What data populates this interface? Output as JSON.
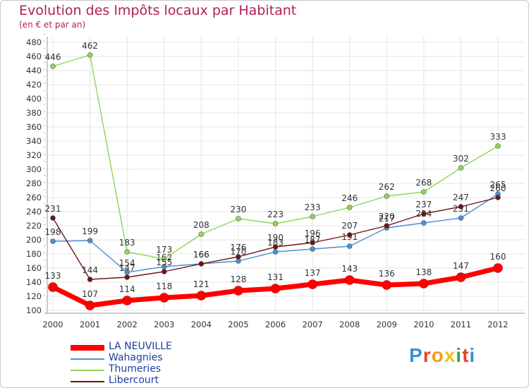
{
  "title": "Evolution des Impôts locaux par Habitant",
  "subtitle": "(en € et par an)",
  "logo": "Proxiti",
  "chart_data": {
    "type": "line",
    "title": "Evolution des Impôts locaux par Habitant",
    "ylabel": "(en € et par an)",
    "xlabel": "",
    "ylim": [
      100,
      480
    ],
    "ytick_step": 20,
    "x": [
      "2000",
      "2001",
      "2002",
      "2003",
      "2004",
      "2005",
      "2006",
      "2007",
      "2008",
      "2009",
      "2010",
      "2011",
      "2012"
    ],
    "series": [
      {
        "name": "LA NEUVILLE",
        "color": "#ff0000",
        "values": [
          133,
          107,
          114,
          118,
          121,
          128,
          131,
          137,
          143,
          136,
          138,
          147,
          160
        ],
        "labels": [
          "133",
          "107",
          "114",
          "118",
          "121",
          "128",
          "131",
          "137",
          "143",
          "136",
          "138",
          "147",
          "160"
        ]
      },
      {
        "name": "Wahagnies",
        "color": "#4a8fcf",
        "values": [
          198,
          199,
          154,
          162,
          166,
          170,
          183,
          187,
          191,
          217,
          224,
          231,
          265
        ],
        "labels": [
          "198",
          "199",
          "154",
          "162",
          "166",
          "170",
          "183",
          "187",
          "191",
          "217",
          "224",
          "231",
          "265"
        ]
      },
      {
        "name": "Thumeries",
        "color": "#8ed656",
        "values": [
          446,
          462,
          183,
          173,
          208,
          230,
          223,
          233,
          246,
          262,
          268,
          302,
          333
        ],
        "labels": [
          "446",
          "462",
          "183",
          "173",
          "208",
          "230",
          "223",
          "233",
          "246",
          "262",
          "268",
          "302",
          "333"
        ]
      },
      {
        "name": "Libercourt",
        "color": "#6b1616",
        "values": [
          231,
          144,
          147,
          155,
          166,
          176,
          190,
          196,
          207,
          220,
          237,
          247,
          260
        ],
        "labels": [
          "231",
          "144",
          "147",
          "155",
          "166",
          "176",
          "190",
          "196",
          "207",
          "220",
          "237",
          "247",
          "260"
        ]
      }
    ]
  }
}
